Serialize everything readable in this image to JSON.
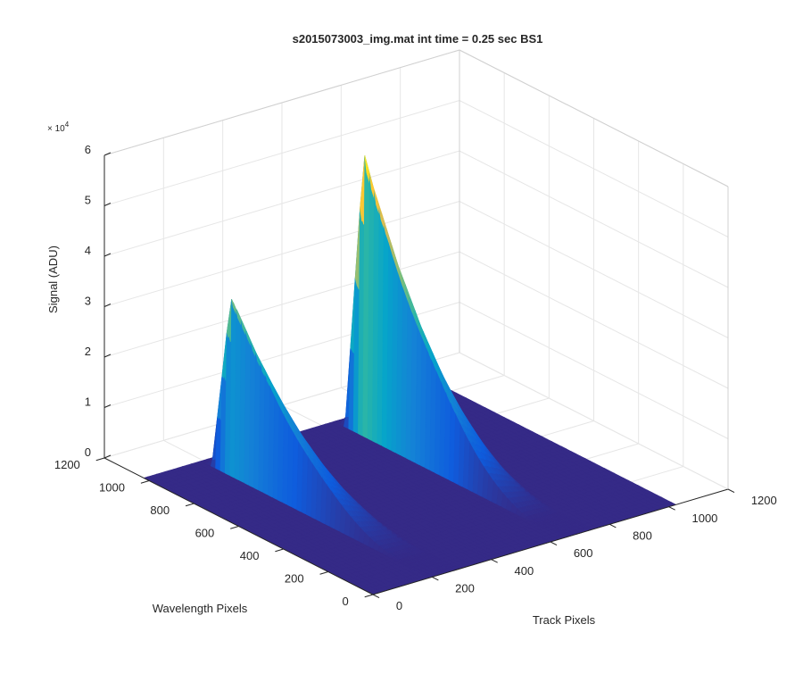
{
  "chart_data": {
    "type": "surface",
    "title": "s2015073003_img.mat int time = 0.25 sec   BS1",
    "xlabel": "Track Pixels",
    "ylabel": "Wavelength Pixels",
    "zlabel": "Signal (ADU)",
    "xlim": [
      0,
      1200
    ],
    "ylim": [
      0,
      1200
    ],
    "zlim": [
      0,
      60000
    ],
    "xticks": [
      "0",
      "200",
      "400",
      "600",
      "800",
      "1000",
      "1200"
    ],
    "yticks": [
      "0",
      "200",
      "400",
      "600",
      "800",
      "1000",
      "1200"
    ],
    "zticks": [
      "0",
      "1",
      "2",
      "3",
      "4",
      "5",
      "6"
    ],
    "z_exponent_base": "× 10",
    "z_exponent_power": "4",
    "grid": true,
    "colormap": "parula",
    "surface_extent": {
      "x": [
        0,
        1024
      ],
      "y": [
        0,
        1024
      ]
    },
    "peaks": [
      {
        "track_pixel": 200,
        "max_signal": 35000,
        "wavelength_at_max": 900
      },
      {
        "track_pixel": 650,
        "max_signal": 55000,
        "wavelength_at_max": 900
      }
    ],
    "colors": {
      "baseline": "#352a87",
      "colormap_stops": [
        "#352a87",
        "#0f5cdd",
        "#1481d6",
        "#06a4ca",
        "#2eb7a4",
        "#87bf77",
        "#d1bb59",
        "#fec832",
        "#f9fb0e"
      ]
    }
  }
}
